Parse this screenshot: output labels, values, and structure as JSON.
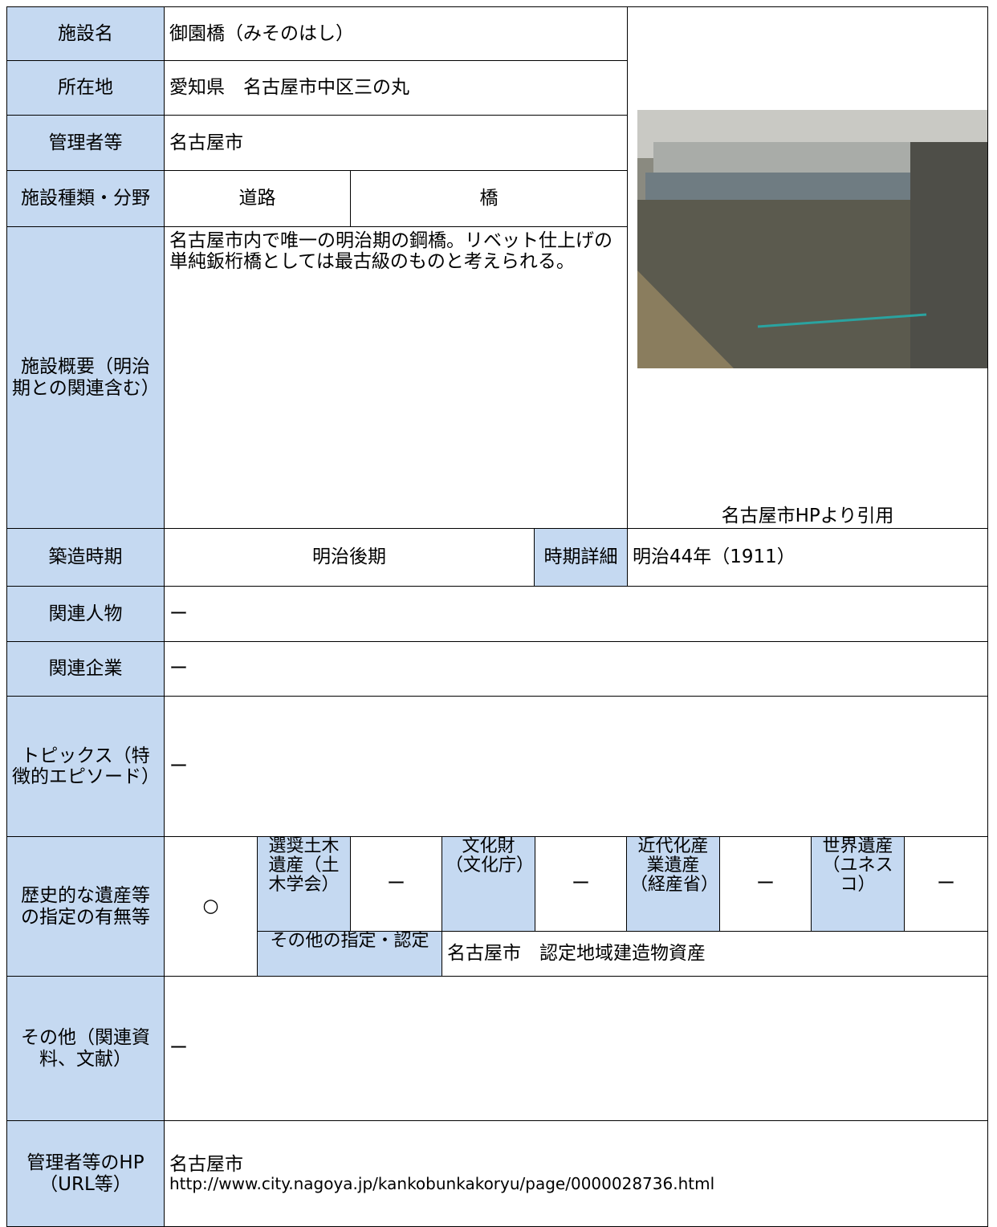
{
  "name": {
    "label": "施設名",
    "value": "御園橋（みそのはし）"
  },
  "location": {
    "label": "所在地",
    "value": "愛知県　名古屋市中区三の丸"
  },
  "manager": {
    "label": "管理者等",
    "value": "名古屋市"
  },
  "category": {
    "label": "施設種類・分野",
    "type": "道路",
    "subtype": "橋"
  },
  "overview": {
    "label": "施設概要（明治期との関連含む）",
    "value": "名古屋市内で唯一の明治期の鋼橋。リベット仕上げの単純鈑桁橋としては最古級のものと考えられる。"
  },
  "photo": {
    "caption": "名古屋市HPより引用"
  },
  "period": {
    "label": "築造時期",
    "value": "明治後期",
    "detail_label": "時期詳細",
    "detail": "明治44年（1911）"
  },
  "people": {
    "label": "関連人物",
    "value": "ー"
  },
  "companies": {
    "label": "関連企業",
    "value": "ー"
  },
  "topics": {
    "label": "トピックス（特徴的エピソード）",
    "value": "ー"
  },
  "designations": {
    "label": "歴史的な遺産等の指定の有無等",
    "mark": "○",
    "items": [
      {
        "label": "選奨土木遺産（土木学会）",
        "value": "ー"
      },
      {
        "label": "文化財（文化庁）",
        "value": "ー"
      },
      {
        "label": "近代化産業遺産（経産省）",
        "value": "ー"
      },
      {
        "label": "世界遺産（ユネスコ）",
        "value": "ー"
      }
    ],
    "other_label": "その他の指定・認定",
    "other": "名古屋市　認定地域建造物資産"
  },
  "other": {
    "label": "その他（関連資料、文献）",
    "value": "ー"
  },
  "homepage": {
    "label": "管理者等のHP（URL等）",
    "name": "名古屋市",
    "url": "http://www.city.nagoya.jp/kankobunkakoryu/page/0000028736.html"
  }
}
